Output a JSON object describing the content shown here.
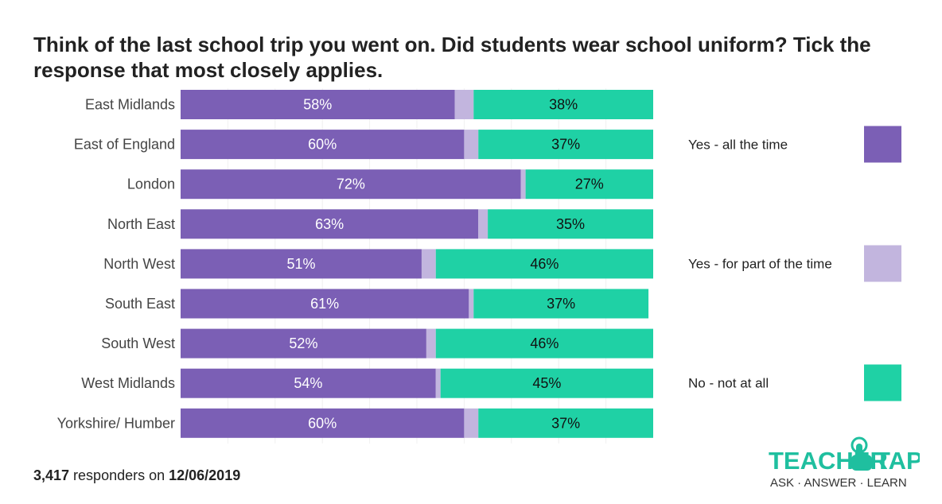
{
  "title": "Think of the last school trip you went on. Did students wear school uniform? Tick the response that most closely applies.",
  "footer": {
    "count": "3,417",
    "middle": " responders on ",
    "date": "12/06/2019"
  },
  "logo": {
    "word_left": "TEACHER",
    "word_right": "TAPP",
    "tagline": "ASK · ANSWER · LEARN",
    "color": "#1fbf9f"
  },
  "chart_data": {
    "type": "bar",
    "orientation": "horizontal",
    "stacked": true,
    "categories": [
      "East Midlands",
      "East of England",
      "London",
      "North East",
      "North West",
      "South East",
      "South West",
      "West Midlands",
      "Yorkshire/ Humber"
    ],
    "series": [
      {
        "name": "Yes - all the time",
        "color": "#7b5fb5",
        "label_color": "#ffffff",
        "values": [
          58,
          60,
          72,
          63,
          51,
          61,
          52,
          54,
          60
        ],
        "labels": [
          "58%",
          "60%",
          "72%",
          "63%",
          "51%",
          "61%",
          "52%",
          "54%",
          "60%"
        ]
      },
      {
        "name": "Yes - for part of the time",
        "color": "#c2b5de",
        "label_color": "#ffffff",
        "values": [
          4,
          3,
          1,
          2,
          3,
          1,
          2,
          1,
          3
        ],
        "labels": [
          "",
          "",
          "",
          "",
          "",
          "",
          "",
          "",
          ""
        ]
      },
      {
        "name": "No - not at all",
        "color": "#1fd1a5",
        "label_color": "#111111",
        "values": [
          38,
          37,
          27,
          35,
          46,
          37,
          46,
          45,
          37
        ],
        "labels": [
          "38%",
          "37%",
          "27%",
          "35%",
          "46%",
          "37%",
          "46%",
          "45%",
          "37%"
        ]
      }
    ],
    "xlim": [
      0,
      100
    ],
    "legend_position": "right"
  }
}
